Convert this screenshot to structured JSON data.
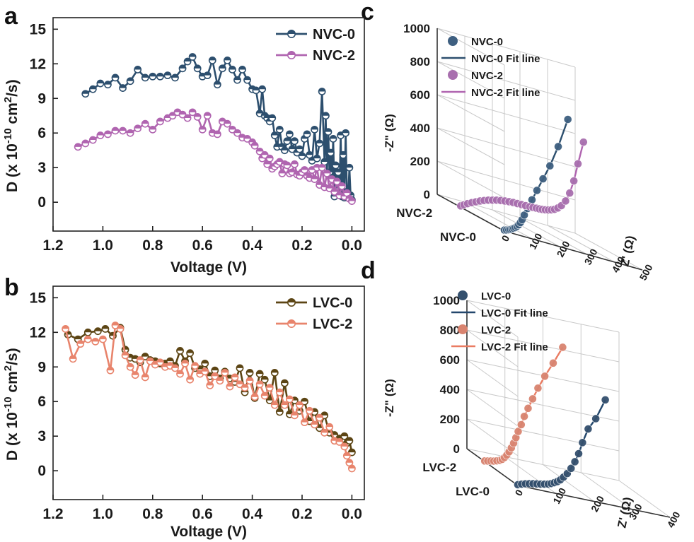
{
  "colors": {
    "nvc0": "#2d4f6e",
    "nvc2": "#b065b0",
    "lvc0": "#5c4514",
    "lvc2": "#e8846c",
    "nvc0_ball": "#3e5f80",
    "nvc2_ball": "#a86fae",
    "lvc0_ball": "#34506e",
    "lvc2_ball": "#d98470",
    "lvc0_line": "#23476c",
    "lvc2_line": "#ea7c62",
    "grid": "#c9c9c9"
  },
  "chart_data": [
    {
      "id": "a",
      "panel_label": "a",
      "type": "line",
      "title": "",
      "xlabel": "Voltage (V)",
      "ylabel_main": "D (x 10",
      "ylabel_exp": "-10",
      "ylabel_mid": " cm",
      "ylabel_exp2": "2",
      "ylabel_end": "/s)",
      "xlim": [
        1.2,
        -0.05
      ],
      "ylim": [
        -2.5,
        16
      ],
      "xticks": [
        1.2,
        1.0,
        0.8,
        0.6,
        0.4,
        0.2,
        0.0
      ],
      "xtick_labels": [
        "1.2",
        "1.0",
        "0.8",
        "0.6",
        "0.4",
        "0.2",
        "0.0"
      ],
      "yticks": [
        0,
        3,
        6,
        9,
        12,
        15
      ],
      "ytick_labels": [
        "0",
        "3",
        "6",
        "9",
        "12",
        "15"
      ],
      "legend": [
        "NVC-0",
        "NVC-2"
      ],
      "legend_position": "top-right",
      "series": [
        {
          "name": "NVC-0",
          "color_key": "nvc0",
          "x": [
            1.07,
            1.04,
            1.01,
            0.98,
            0.95,
            0.92,
            0.89,
            0.86,
            0.83,
            0.8,
            0.77,
            0.74,
            0.71,
            0.68,
            0.66,
            0.64,
            0.62,
            0.6,
            0.58,
            0.56,
            0.54,
            0.52,
            0.5,
            0.48,
            0.46,
            0.44,
            0.42,
            0.4,
            0.385,
            0.37,
            0.36,
            0.35,
            0.34,
            0.33,
            0.32,
            0.31,
            0.3,
            0.29,
            0.28,
            0.27,
            0.26,
            0.25,
            0.24,
            0.23,
            0.22,
            0.21,
            0.2,
            0.19,
            0.18,
            0.17,
            0.16,
            0.15,
            0.14,
            0.13,
            0.12,
            0.11,
            0.105,
            0.1,
            0.095,
            0.09,
            0.085,
            0.08,
            0.075,
            0.07,
            0.065,
            0.06,
            0.055,
            0.05,
            0.045,
            0.04,
            0.035,
            0.03,
            0.025,
            0.02,
            0.015,
            0.01,
            0.005,
            0.0
          ],
          "y": [
            9.4,
            9.8,
            10.3,
            10.2,
            10.8,
            9.9,
            10.5,
            11.5,
            10.8,
            10.9,
            10.9,
            11.0,
            10.8,
            11.6,
            12.2,
            12.6,
            11.6,
            10.9,
            11.0,
            12.3,
            10.2,
            11.6,
            12.3,
            11.5,
            10.6,
            11.5,
            10.6,
            9.8,
            9.7,
            7.7,
            9.8,
            7.5,
            7.3,
            7.0,
            7.3,
            5.8,
            4.8,
            6.3,
            4.8,
            4.5,
            5.3,
            5.9,
            4.6,
            5.3,
            4.3,
            4.6,
            4.0,
            5.5,
            5.9,
            4.1,
            3.6,
            6.3,
            3.8,
            5.1,
            9.6,
            3.5,
            7.5,
            2.5,
            6.1,
            2.6,
            4.3,
            2.1,
            5.5,
            0.5,
            3.2,
            1.2,
            2.6,
            0.7,
            5.8,
            0.5,
            4.1,
            0.4,
            6.0,
            0.9,
            0.4,
            3.0,
            0.6,
            0.2
          ]
        },
        {
          "name": "NVC-2",
          "color_key": "nvc2",
          "x": [
            1.1,
            1.07,
            1.04,
            1.01,
            0.98,
            0.95,
            0.92,
            0.89,
            0.86,
            0.83,
            0.8,
            0.77,
            0.74,
            0.72,
            0.7,
            0.68,
            0.66,
            0.64,
            0.62,
            0.6,
            0.58,
            0.56,
            0.54,
            0.52,
            0.5,
            0.48,
            0.46,
            0.44,
            0.42,
            0.4,
            0.39,
            0.37,
            0.36,
            0.35,
            0.34,
            0.33,
            0.32,
            0.31,
            0.3,
            0.29,
            0.28,
            0.27,
            0.26,
            0.25,
            0.24,
            0.23,
            0.22,
            0.21,
            0.2,
            0.19,
            0.18,
            0.17,
            0.16,
            0.15,
            0.14,
            0.13,
            0.12,
            0.11,
            0.1,
            0.09,
            0.08,
            0.07,
            0.06,
            0.05,
            0.04,
            0.03,
            0.02,
            0.01,
            0.0
          ],
          "y": [
            4.8,
            5.1,
            5.4,
            5.8,
            5.9,
            6.2,
            6.2,
            6.0,
            6.4,
            6.8,
            6.3,
            7.0,
            7.3,
            7.5,
            7.8,
            7.6,
            7.3,
            7.8,
            7.4,
            6.3,
            7.5,
            6.0,
            5.9,
            7.0,
            6.8,
            6.3,
            6.0,
            5.6,
            5.5,
            5.2,
            4.9,
            4.4,
            3.8,
            4.1,
            3.3,
            3.8,
            2.9,
            3.1,
            3.3,
            3.5,
            2.5,
            3.3,
            3.2,
            2.5,
            2.6,
            3.3,
            2.4,
            2.3,
            2.6,
            2.8,
            2.3,
            2.1,
            2.8,
            2.0,
            3.0,
            1.5,
            3.0,
            1.3,
            2.5,
            1.2,
            2.0,
            0.9,
            1.8,
            0.6,
            1.4,
            0.5,
            0.8,
            0.3,
            0.1
          ]
        }
      ]
    },
    {
      "id": "b",
      "panel_label": "b",
      "type": "line",
      "title": "",
      "xlabel": "Voltage (V)",
      "ylabel_main": "D (x 10",
      "ylabel_exp": "-10",
      "ylabel_mid": " cm",
      "ylabel_exp2": "2",
      "ylabel_end": "/s)",
      "xlim": [
        1.2,
        -0.05
      ],
      "ylim": [
        -2.5,
        16
      ],
      "xticks": [
        1.2,
        1.0,
        0.8,
        0.6,
        0.4,
        0.2,
        0.0
      ],
      "xtick_labels": [
        "1.2",
        "1.0",
        "0.8",
        "0.6",
        "0.4",
        "0.2",
        "0.0"
      ],
      "yticks": [
        0,
        3,
        6,
        9,
        12,
        15
      ],
      "ytick_labels": [
        "0",
        "3",
        "6",
        "9",
        "12",
        "15"
      ],
      "legend": [
        "LVC-0",
        "LVC-2"
      ],
      "legend_position": "top-right",
      "series": [
        {
          "name": "LVC-0",
          "color_key": "lvc0",
          "x": [
            1.14,
            1.1,
            1.06,
            1.02,
            0.99,
            0.96,
            0.93,
            0.91,
            0.89,
            0.87,
            0.85,
            0.83,
            0.81,
            0.79,
            0.77,
            0.75,
            0.73,
            0.71,
            0.69,
            0.67,
            0.65,
            0.63,
            0.61,
            0.59,
            0.57,
            0.55,
            0.53,
            0.51,
            0.49,
            0.47,
            0.45,
            0.43,
            0.41,
            0.39,
            0.37,
            0.35,
            0.33,
            0.31,
            0.29,
            0.27,
            0.25,
            0.23,
            0.21,
            0.19,
            0.17,
            0.15,
            0.13,
            0.11,
            0.09,
            0.07,
            0.05,
            0.03,
            0.02,
            0.01,
            0.0
          ],
          "y": [
            11.8,
            11.4,
            12.0,
            12.1,
            12.3,
            11.7,
            12.4,
            10.5,
            9.8,
            9.7,
            9.4,
            9.9,
            9.6,
            9.5,
            9.3,
            9.3,
            9.5,
            9.1,
            10.4,
            9.5,
            10.2,
            8.9,
            8.8,
            9.3,
            8.2,
            8.7,
            8.0,
            8.6,
            8.0,
            7.7,
            8.9,
            6.8,
            8.5,
            6.3,
            8.4,
            7.9,
            6.1,
            8.5,
            5.1,
            7.6,
            4.9,
            6.1,
            5.2,
            6.0,
            4.3,
            5.1,
            3.7,
            4.8,
            3.3,
            3.1,
            2.8,
            3.0,
            2.4,
            2.6,
            1.6
          ]
        },
        {
          "name": "LVC-2",
          "color_key": "lvc2",
          "x": [
            1.15,
            1.12,
            1.09,
            1.06,
            1.03,
            1.0,
            0.97,
            0.95,
            0.93,
            0.91,
            0.89,
            0.87,
            0.85,
            0.83,
            0.81,
            0.79,
            0.77,
            0.75,
            0.73,
            0.71,
            0.69,
            0.67,
            0.65,
            0.63,
            0.61,
            0.59,
            0.57,
            0.55,
            0.53,
            0.51,
            0.49,
            0.47,
            0.45,
            0.43,
            0.41,
            0.39,
            0.37,
            0.35,
            0.33,
            0.31,
            0.29,
            0.27,
            0.25,
            0.23,
            0.21,
            0.19,
            0.17,
            0.15,
            0.13,
            0.11,
            0.09,
            0.07,
            0.05,
            0.03,
            0.02,
            0.01,
            0.0
          ],
          "y": [
            12.3,
            9.7,
            11.0,
            11.4,
            11.2,
            11.4,
            8.7,
            12.6,
            12.3,
            10.0,
            9.0,
            8.3,
            9.6,
            8.1,
            9.5,
            9.2,
            9.4,
            9.0,
            9.1,
            8.9,
            8.4,
            9.3,
            7.9,
            9.1,
            8.4,
            8.6,
            7.4,
            8.2,
            7.8,
            8.5,
            7.3,
            8.1,
            7.5,
            7.2,
            7.8,
            6.4,
            7.5,
            6.5,
            7.2,
            5.7,
            6.8,
            5.7,
            6.2,
            4.8,
            5.7,
            4.2,
            5.2,
            4.0,
            4.6,
            3.3,
            3.8,
            2.6,
            2.5,
            2.1,
            1.3,
            0.7,
            0.2
          ]
        }
      ]
    },
    {
      "id": "c",
      "panel_label": "c",
      "type": "line3d",
      "title": "",
      "zlabel": "-Z\" (Ω)",
      "xlabel": "Z' (Ω)",
      "zticks": [
        0,
        200,
        400,
        600,
        800,
        1000
      ],
      "zlim": [
        0,
        1000
      ],
      "xticks": [
        0,
        100,
        200,
        300,
        400,
        500
      ],
      "xlim": [
        0,
        500
      ],
      "depth_labels": [
        "NVC-2",
        "NVC-0"
      ],
      "legend": [
        "NVC-0",
        "NVC-0 Fit line",
        "NVC-2",
        "NVC-2 Fit line"
      ],
      "legend_position": "top-left",
      "series": [
        {
          "name": "NVC-0",
          "depth": 1,
          "color_key": "nvc0",
          "x": [
            0,
            8,
            16,
            22,
            28,
            34,
            40,
            46,
            52,
            58,
            64,
            72,
            84,
            100,
            118,
            140,
            165,
            195,
            230
          ],
          "y": [
            6,
            10,
            15,
            20,
            26,
            33,
            40,
            50,
            62,
            78,
            98,
            130,
            175,
            235,
            300,
            380,
            470,
            600,
            780
          ]
        },
        {
          "name": "NVC-2",
          "depth": 0,
          "color_key": "nvc2",
          "x": [
            0,
            12,
            25,
            40,
            55,
            70,
            85,
            100,
            115,
            130,
            145,
            160,
            175,
            190,
            205,
            220,
            235,
            250,
            262,
            274,
            285,
            296,
            307,
            318,
            329,
            340,
            352,
            365,
            380,
            395,
            410,
            425,
            445
          ],
          "y": [
            8,
            20,
            33,
            46,
            58,
            70,
            80,
            89,
            96,
            103,
            108,
            112,
            115,
            117,
            118,
            119,
            119,
            120,
            121,
            122,
            123,
            125,
            128,
            132,
            138,
            146,
            160,
            180,
            215,
            270,
            350,
            460,
            600
          ]
        }
      ]
    },
    {
      "id": "d",
      "panel_label": "d",
      "type": "line3d",
      "title": "",
      "zlabel": "-Z\" (Ω)",
      "xlabel": "Z' (Ω)",
      "zticks": [
        0,
        200,
        400,
        600,
        800,
        1000
      ],
      "zlim": [
        0,
        1000
      ],
      "xticks": [
        0,
        100,
        200,
        300,
        400
      ],
      "xlim": [
        0,
        400
      ],
      "depth_labels": [
        "LVC-2",
        "LVC-0"
      ],
      "legend": [
        "LVC-0",
        "LVC-0 Fit line",
        "LVC-2",
        "LVC-2 Fit line"
      ],
      "legend_position": "top-left",
      "series": [
        {
          "name": "LVC-0",
          "depth": 1,
          "color_key": "lvc0",
          "x": [
            0,
            10,
            20,
            30,
            40,
            50,
            60,
            70,
            80,
            88,
            96,
            104,
            112,
            120,
            130,
            140,
            150,
            160,
            170,
            185,
            205,
            230
          ],
          "y": [
            5,
            14,
            22,
            28,
            33,
            37,
            41,
            46,
            52,
            60,
            70,
            82,
            98,
            120,
            150,
            190,
            240,
            300,
            380,
            480,
            560,
            700
          ]
        },
        {
          "name": "LVC-2",
          "depth": 0,
          "color_key": "lvc2",
          "x": [
            0,
            8,
            16,
            24,
            32,
            40,
            46,
            52,
            58,
            64,
            70,
            76,
            82,
            88,
            96,
            104,
            114,
            126,
            140,
            158,
            180,
            205
          ],
          "y": [
            4,
            8,
            12,
            16,
            22,
            30,
            40,
            55,
            75,
            100,
            130,
            165,
            205,
            250,
            300,
            360,
            420,
            490,
            570,
            660,
            760,
            880
          ]
        }
      ]
    }
  ]
}
